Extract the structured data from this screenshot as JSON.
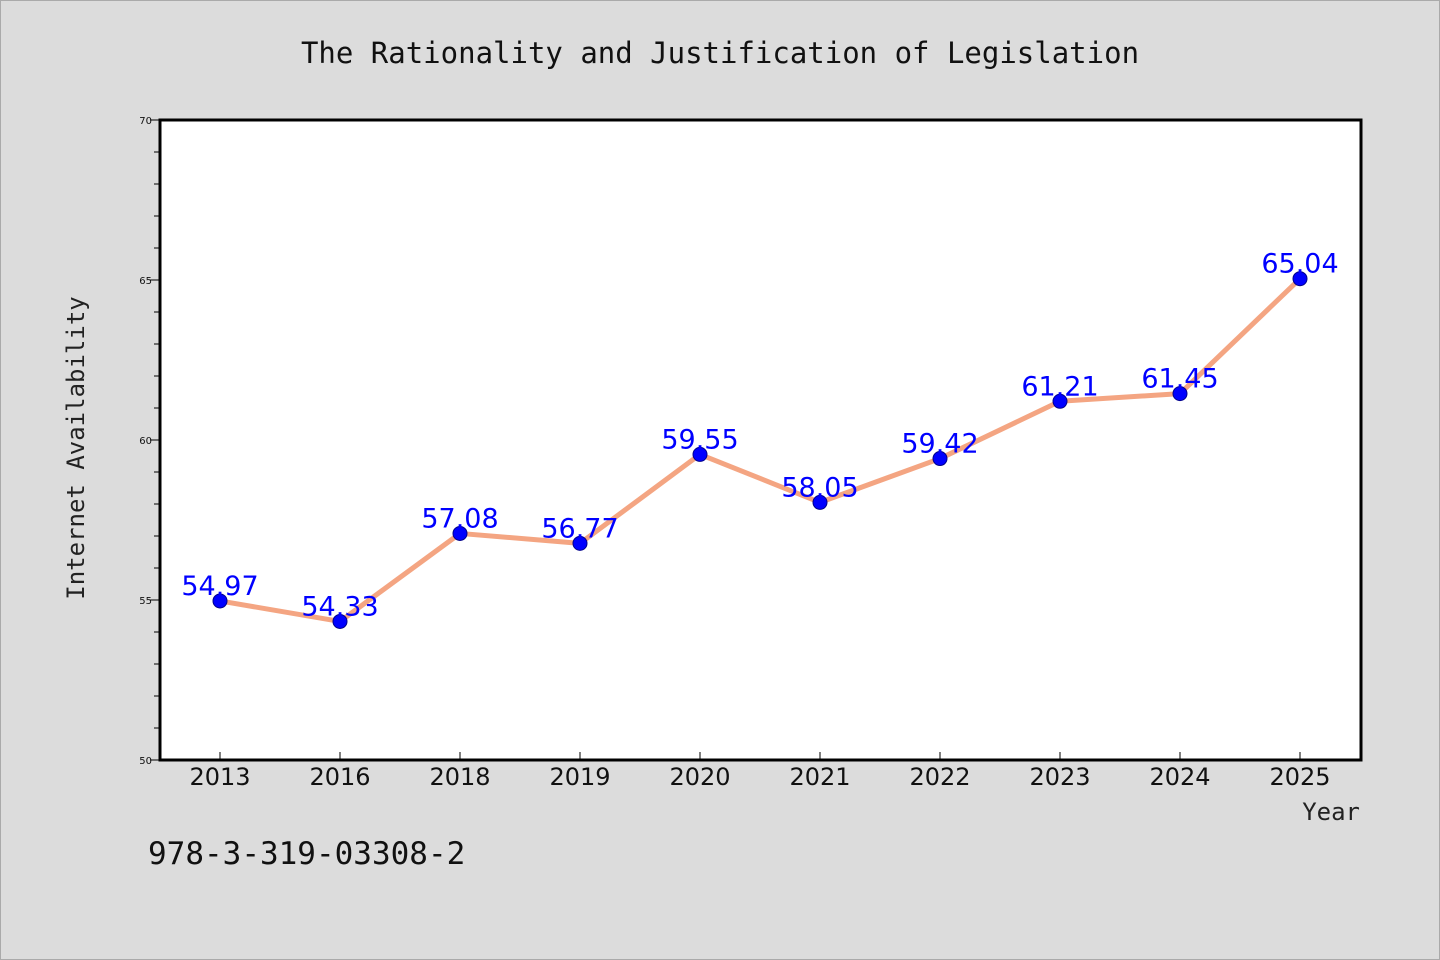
{
  "colors": {
    "background": "#dcdcdc",
    "plot_background": "#ffffff",
    "line": "#f4a582",
    "marker": "#0000ff",
    "data_label": "#0000ff"
  },
  "footer_text": "978-3-319-03308-2",
  "chart_data": {
    "type": "line",
    "title": "The Rationality and Justification of Legislation",
    "xlabel": "Year",
    "ylabel": "Internet Availability",
    "categories": [
      "2013",
      "2016",
      "2018",
      "2019",
      "2020",
      "2021",
      "2022",
      "2023",
      "2024",
      "2025"
    ],
    "values": [
      54.97,
      54.33,
      57.08,
      56.77,
      59.55,
      58.05,
      59.42,
      61.21,
      61.45,
      65.04
    ],
    "data_labels": [
      "54.97",
      "54.33",
      "57.08",
      "56.77",
      "59.55",
      "58.05",
      "59.42",
      "61.21",
      "61.45",
      "65.04"
    ],
    "ylim": [
      50,
      70
    ],
    "yticks": [
      50,
      55,
      60,
      65,
      70
    ],
    "ytick_labels": [
      "50",
      "55",
      "60",
      "65",
      "70"
    ],
    "grid": false,
    "markers": true
  }
}
